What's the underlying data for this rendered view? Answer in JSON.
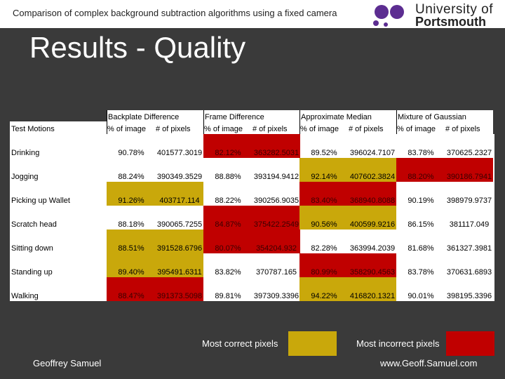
{
  "header": {
    "title": "Comparison of complex background subtraction algorithms using a fixed camera",
    "logo_line1": "University of",
    "logo_line2": "Portsmouth"
  },
  "slide_title": "Results - Quality",
  "table": {
    "row_header": "Test Motions",
    "groups": [
      "Backplate Difference",
      "Frame Difference",
      "Approximate Median",
      "Mixture of Gaussian"
    ],
    "subheaders": [
      "% of image",
      "# of pixels"
    ],
    "rows": [
      {
        "label": "Drinking",
        "cells": [
          [
            "90.78%",
            "401577.3019"
          ],
          [
            "82.12%",
            "363282.5031"
          ],
          [
            "89.52%",
            "396024.7107"
          ],
          [
            "83.78%",
            "370625.2327"
          ]
        ],
        "hl": [
          "",
          "red",
          "",
          ""
        ]
      },
      {
        "label": "Jogging",
        "cells": [
          [
            "88.24%",
            "390349.3529"
          ],
          [
            "88.88%",
            "393194.9412"
          ],
          [
            "92.14%",
            "407602.3824"
          ],
          [
            "88.20%",
            "390186.7941"
          ]
        ],
        "hl": [
          "",
          "",
          "gold",
          "red"
        ]
      },
      {
        "label": "Picking up Wallet",
        "cells": [
          [
            "91.26%",
            "403717.114"
          ],
          [
            "88.22%",
            "390256.9035"
          ],
          [
            "83.40%",
            "368940.8088"
          ],
          [
            "90.19%",
            "398979.9737"
          ]
        ],
        "hl": [
          "gold",
          "",
          "red",
          ""
        ]
      },
      {
        "label": "Scratch head",
        "cells": [
          [
            "88.18%",
            "390065.7255"
          ],
          [
            "84.87%",
            "375422.2549"
          ],
          [
            "90.56%",
            "400599.9216"
          ],
          [
            "86.15%",
            "381117.049"
          ]
        ],
        "hl": [
          "",
          "red",
          "gold",
          ""
        ]
      },
      {
        "label": "Sitting down",
        "cells": [
          [
            "88.51%",
            "391528.6796"
          ],
          [
            "80.07%",
            "354204.932"
          ],
          [
            "82.28%",
            "363994.2039"
          ],
          [
            "81.68%",
            "361327.3981"
          ]
        ],
        "hl": [
          "gold",
          "red",
          "",
          ""
        ]
      },
      {
        "label": "Standing up",
        "cells": [
          [
            "89.40%",
            "395491.6311"
          ],
          [
            "83.82%",
            "370787.165"
          ],
          [
            "80.99%",
            "358290.4563"
          ],
          [
            "83.78%",
            "370631.6893"
          ]
        ],
        "hl": [
          "gold",
          "",
          "red",
          ""
        ]
      },
      {
        "label": "Walking",
        "cells": [
          [
            "88.47%",
            "391373.5098"
          ],
          [
            "89.81%",
            "397309.3396"
          ],
          [
            "94.22%",
            "416820.1321"
          ],
          [
            "90.01%",
            "398195.3396"
          ]
        ],
        "hl": [
          "red",
          "",
          "gold",
          ""
        ]
      }
    ]
  },
  "legend": {
    "correct_label": "Most correct pixels",
    "incorrect_label": "Most incorrect pixels",
    "gold_color": "#c9a80b",
    "red_color": "#c00000"
  },
  "footer": {
    "author": "Geoffrey Samuel",
    "website": "www.Geoff.Samuel.com"
  }
}
